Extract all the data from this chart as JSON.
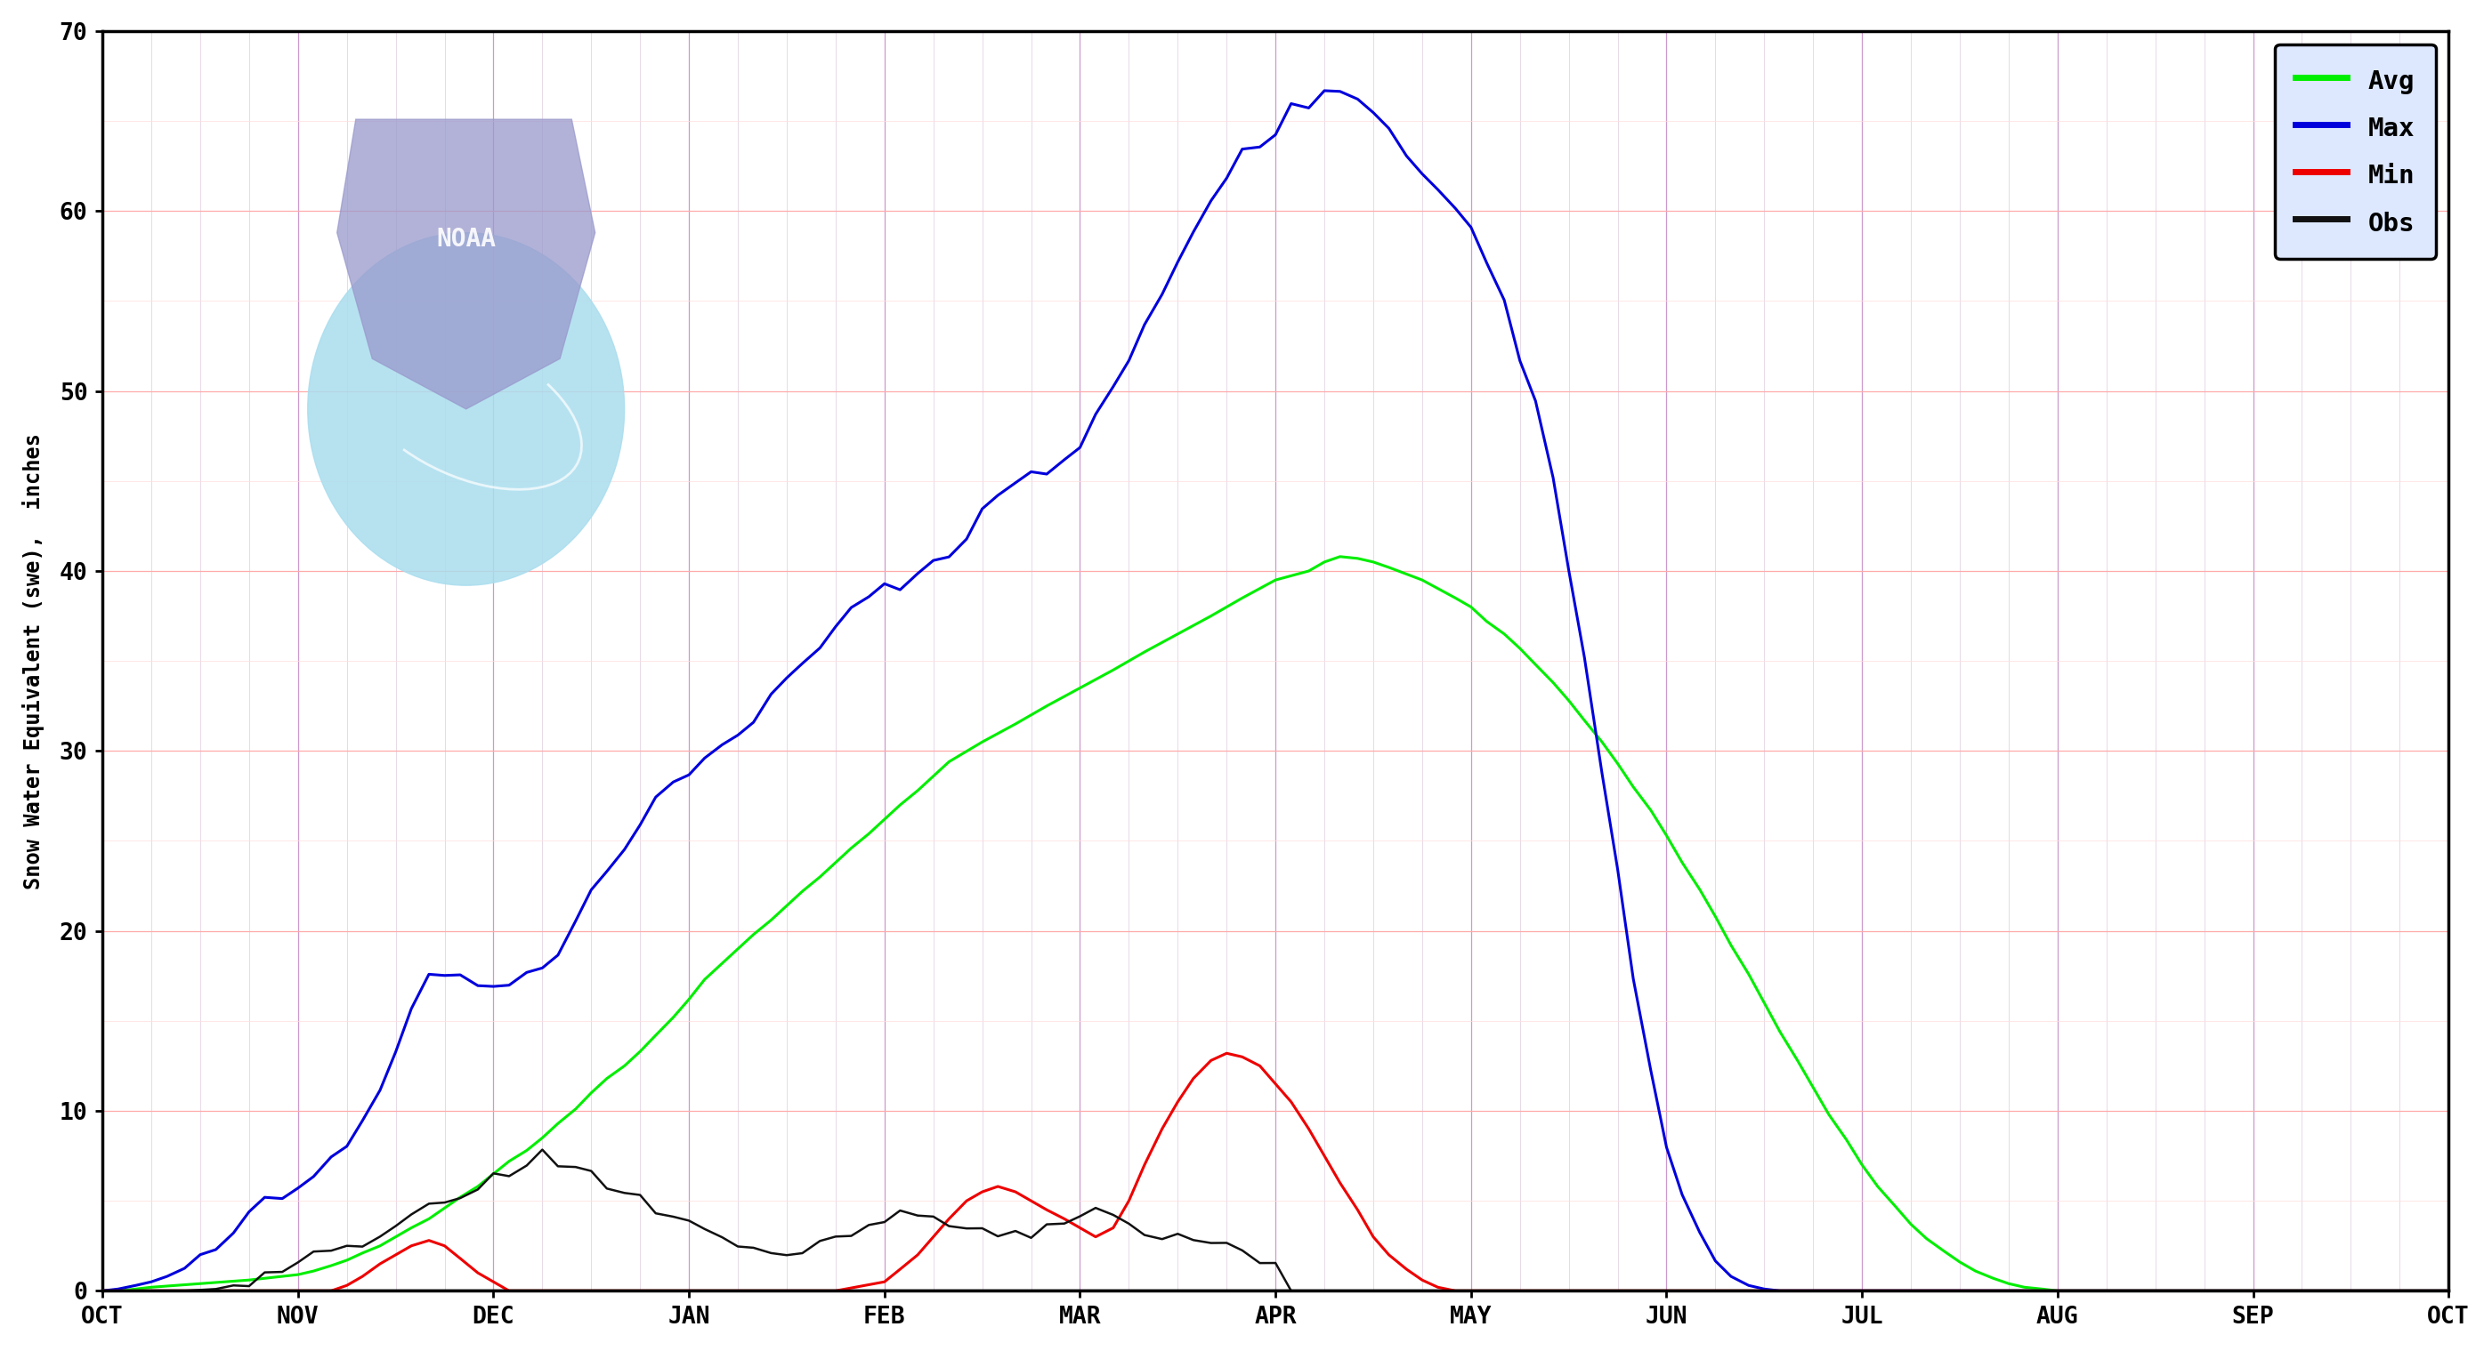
{
  "title": "",
  "ylabel": "Snow Water Equivalent (swe),  inches",
  "xlabel": "",
  "ylim": [
    0,
    70
  ],
  "yticks": [
    0,
    10,
    20,
    30,
    40,
    50,
    60,
    70
  ],
  "months": [
    "OCT",
    "NOV",
    "DEC",
    "JAN",
    "FEB",
    "MAR",
    "APR",
    "MAY",
    "JUN",
    "JUL",
    "AUG",
    "SEP",
    "OCT"
  ],
  "bg_color": "#ffffff",
  "plot_bg_color": "#ffffff",
  "major_hgrid_color": "#ffaaaa",
  "major_vgrid_color": "#cc99cc",
  "minor_hgrid_color": "#ffdddd",
  "minor_vgrid_color": "#ddccdd",
  "avg_color": "#00ee00",
  "max_color": "#0000dd",
  "min_color": "#ee0000",
  "obs_color": "#111111",
  "legend_bg": "#dde8ff",
  "noaa_shield_color": "#9999cc",
  "noaa_bird_color": "#aaddee",
  "avg_data": [
    [
      0.0,
      0.0
    ],
    [
      0.08,
      0.0
    ],
    [
      0.17,
      0.1
    ],
    [
      0.25,
      0.2
    ],
    [
      0.5,
      0.4
    ],
    [
      0.75,
      0.6
    ],
    [
      1.0,
      0.9
    ],
    [
      1.08,
      1.1
    ],
    [
      1.17,
      1.4
    ],
    [
      1.25,
      1.7
    ],
    [
      1.33,
      2.1
    ],
    [
      1.42,
      2.5
    ],
    [
      1.5,
      3.0
    ],
    [
      1.58,
      3.5
    ],
    [
      1.67,
      4.0
    ],
    [
      1.75,
      4.6
    ],
    [
      1.83,
      5.2
    ],
    [
      1.92,
      5.8
    ],
    [
      2.0,
      6.5
    ],
    [
      2.08,
      7.2
    ],
    [
      2.17,
      7.8
    ],
    [
      2.25,
      8.5
    ],
    [
      2.33,
      9.3
    ],
    [
      2.42,
      10.1
    ],
    [
      2.5,
      11.0
    ],
    [
      2.58,
      11.8
    ],
    [
      2.67,
      12.5
    ],
    [
      2.75,
      13.3
    ],
    [
      2.83,
      14.2
    ],
    [
      2.92,
      15.2
    ],
    [
      3.0,
      16.2
    ],
    [
      3.08,
      17.3
    ],
    [
      3.17,
      18.2
    ],
    [
      3.25,
      19.0
    ],
    [
      3.33,
      19.8
    ],
    [
      3.42,
      20.6
    ],
    [
      3.5,
      21.4
    ],
    [
      3.58,
      22.2
    ],
    [
      3.67,
      23.0
    ],
    [
      3.75,
      23.8
    ],
    [
      3.83,
      24.6
    ],
    [
      3.92,
      25.4
    ],
    [
      4.0,
      26.2
    ],
    [
      4.08,
      27.0
    ],
    [
      4.17,
      27.8
    ],
    [
      4.25,
      28.6
    ],
    [
      4.33,
      29.4
    ],
    [
      4.5,
      30.5
    ],
    [
      4.67,
      31.5
    ],
    [
      4.83,
      32.5
    ],
    [
      5.0,
      33.5
    ],
    [
      5.17,
      34.5
    ],
    [
      5.33,
      35.5
    ],
    [
      5.5,
      36.5
    ],
    [
      5.67,
      37.5
    ],
    [
      5.83,
      38.5
    ],
    [
      6.0,
      39.5
    ],
    [
      6.17,
      40.0
    ],
    [
      6.25,
      40.5
    ],
    [
      6.33,
      40.8
    ],
    [
      6.42,
      40.7
    ],
    [
      6.5,
      40.5
    ],
    [
      6.58,
      40.2
    ],
    [
      6.75,
      39.5
    ],
    [
      6.92,
      38.5
    ],
    [
      7.0,
      38.0
    ],
    [
      7.08,
      37.2
    ],
    [
      7.17,
      36.5
    ],
    [
      7.25,
      35.7
    ],
    [
      7.33,
      34.8
    ],
    [
      7.42,
      33.8
    ],
    [
      7.5,
      32.8
    ],
    [
      7.58,
      31.7
    ],
    [
      7.67,
      30.5
    ],
    [
      7.75,
      29.3
    ],
    [
      7.83,
      28.0
    ],
    [
      7.92,
      26.7
    ],
    [
      8.0,
      25.3
    ],
    [
      8.08,
      23.8
    ],
    [
      8.17,
      22.3
    ],
    [
      8.25,
      20.8
    ],
    [
      8.33,
      19.2
    ],
    [
      8.42,
      17.6
    ],
    [
      8.5,
      16.0
    ],
    [
      8.58,
      14.4
    ],
    [
      8.67,
      12.8
    ],
    [
      8.75,
      11.3
    ],
    [
      8.83,
      9.8
    ],
    [
      8.92,
      8.4
    ],
    [
      9.0,
      7.0
    ],
    [
      9.08,
      5.8
    ],
    [
      9.17,
      4.7
    ],
    [
      9.25,
      3.7
    ],
    [
      9.33,
      2.9
    ],
    [
      9.42,
      2.2
    ],
    [
      9.5,
      1.6
    ],
    [
      9.58,
      1.1
    ],
    [
      9.67,
      0.7
    ],
    [
      9.75,
      0.4
    ],
    [
      9.83,
      0.2
    ],
    [
      9.92,
      0.1
    ],
    [
      10.0,
      0.0
    ],
    [
      10.5,
      0.0
    ],
    [
      11.0,
      0.0
    ],
    [
      11.5,
      0.0
    ],
    [
      12.0,
      0.0
    ]
  ],
  "max_data": [
    [
      0.0,
      0.0
    ],
    [
      0.08,
      0.1
    ],
    [
      0.17,
      0.3
    ],
    [
      0.25,
      0.5
    ],
    [
      0.33,
      0.8
    ],
    [
      0.42,
      1.2
    ],
    [
      0.5,
      1.8
    ],
    [
      0.58,
      2.5
    ],
    [
      0.67,
      3.2
    ],
    [
      0.75,
      4.0
    ],
    [
      0.83,
      4.8
    ],
    [
      0.92,
      5.5
    ],
    [
      1.0,
      6.0
    ],
    [
      1.08,
      6.8
    ],
    [
      1.17,
      7.5
    ],
    [
      1.25,
      8.5
    ],
    [
      1.33,
      9.5
    ],
    [
      1.42,
      11.0
    ],
    [
      1.5,
      13.5
    ],
    [
      1.58,
      15.5
    ],
    [
      1.67,
      17.5
    ],
    [
      1.75,
      18.0
    ],
    [
      1.83,
      17.5
    ],
    [
      1.92,
      17.2
    ],
    [
      2.0,
      17.0
    ],
    [
      2.08,
      17.2
    ],
    [
      2.17,
      17.5
    ],
    [
      2.25,
      18.0
    ],
    [
      2.33,
      19.0
    ],
    [
      2.42,
      20.5
    ],
    [
      2.5,
      22.0
    ],
    [
      2.58,
      23.5
    ],
    [
      2.67,
      24.8
    ],
    [
      2.75,
      26.0
    ],
    [
      2.83,
      27.0
    ],
    [
      2.92,
      27.8
    ],
    [
      3.0,
      28.5
    ],
    [
      3.08,
      29.2
    ],
    [
      3.17,
      30.0
    ],
    [
      3.25,
      31.0
    ],
    [
      3.33,
      32.0
    ],
    [
      3.42,
      33.0
    ],
    [
      3.5,
      34.0
    ],
    [
      3.58,
      35.0
    ],
    [
      3.67,
      36.0
    ],
    [
      3.75,
      37.0
    ],
    [
      3.83,
      38.0
    ],
    [
      3.92,
      38.8
    ],
    [
      4.0,
      39.5
    ],
    [
      4.08,
      39.0
    ],
    [
      4.17,
      39.5
    ],
    [
      4.25,
      40.5
    ],
    [
      4.33,
      41.0
    ],
    [
      4.42,
      42.0
    ],
    [
      4.5,
      43.5
    ],
    [
      4.58,
      44.5
    ],
    [
      4.67,
      45.2
    ],
    [
      4.75,
      45.5
    ],
    [
      4.83,
      45.8
    ],
    [
      4.92,
      46.2
    ],
    [
      5.0,
      47.0
    ],
    [
      5.08,
      48.5
    ],
    [
      5.17,
      50.0
    ],
    [
      5.25,
      51.5
    ],
    [
      5.33,
      53.5
    ],
    [
      5.42,
      55.5
    ],
    [
      5.5,
      57.0
    ],
    [
      5.58,
      59.0
    ],
    [
      5.67,
      60.5
    ],
    [
      5.75,
      62.0
    ],
    [
      5.83,
      63.5
    ],
    [
      5.92,
      64.0
    ],
    [
      6.0,
      64.5
    ],
    [
      6.08,
      65.5
    ],
    [
      6.17,
      66.0
    ],
    [
      6.25,
      66.5
    ],
    [
      6.33,
      66.5
    ],
    [
      6.42,
      66.0
    ],
    [
      6.5,
      65.5
    ],
    [
      6.58,
      64.5
    ],
    [
      6.67,
      63.5
    ],
    [
      6.75,
      62.5
    ],
    [
      6.83,
      61.5
    ],
    [
      6.92,
      60.5
    ],
    [
      7.0,
      59.5
    ],
    [
      7.08,
      57.5
    ],
    [
      7.17,
      55.0
    ],
    [
      7.25,
      52.0
    ],
    [
      7.33,
      49.0
    ],
    [
      7.42,
      45.0
    ],
    [
      7.5,
      40.0
    ],
    [
      7.58,
      35.0
    ],
    [
      7.67,
      29.0
    ],
    [
      7.75,
      23.0
    ],
    [
      7.83,
      17.0
    ],
    [
      7.92,
      12.0
    ],
    [
      8.0,
      8.0
    ],
    [
      8.08,
      5.0
    ],
    [
      8.17,
      3.0
    ],
    [
      8.25,
      1.5
    ],
    [
      8.33,
      0.8
    ],
    [
      8.42,
      0.3
    ],
    [
      8.5,
      0.1
    ],
    [
      8.58,
      0.0
    ],
    [
      9.0,
      0.0
    ],
    [
      10.0,
      0.0
    ],
    [
      11.0,
      0.0
    ],
    [
      12.0,
      0.0
    ]
  ],
  "min_data": [
    [
      0.0,
      0.0
    ],
    [
      0.5,
      0.0
    ],
    [
      0.75,
      0.0
    ],
    [
      1.0,
      0.0
    ],
    [
      1.17,
      0.0
    ],
    [
      1.25,
      0.3
    ],
    [
      1.33,
      0.8
    ],
    [
      1.42,
      1.5
    ],
    [
      1.5,
      2.0
    ],
    [
      1.58,
      2.5
    ],
    [
      1.67,
      2.8
    ],
    [
      1.75,
      2.5
    ],
    [
      1.83,
      1.8
    ],
    [
      1.92,
      1.0
    ],
    [
      2.0,
      0.5
    ],
    [
      2.08,
      0.0
    ],
    [
      2.5,
      0.0
    ],
    [
      3.0,
      0.0
    ],
    [
      3.5,
      0.0
    ],
    [
      3.58,
      0.0
    ],
    [
      3.67,
      0.0
    ],
    [
      3.75,
      0.0
    ],
    [
      4.0,
      0.5
    ],
    [
      4.08,
      1.2
    ],
    [
      4.17,
      2.0
    ],
    [
      4.25,
      3.0
    ],
    [
      4.33,
      4.0
    ],
    [
      4.42,
      5.0
    ],
    [
      4.5,
      5.5
    ],
    [
      4.58,
      5.8
    ],
    [
      4.67,
      5.5
    ],
    [
      4.75,
      5.0
    ],
    [
      4.83,
      4.5
    ],
    [
      4.92,
      4.0
    ],
    [
      5.0,
      3.5
    ],
    [
      5.08,
      3.0
    ],
    [
      5.17,
      3.5
    ],
    [
      5.25,
      5.0
    ],
    [
      5.33,
      7.0
    ],
    [
      5.42,
      9.0
    ],
    [
      5.5,
      10.5
    ],
    [
      5.58,
      11.8
    ],
    [
      5.67,
      12.8
    ],
    [
      5.75,
      13.2
    ],
    [
      5.83,
      13.0
    ],
    [
      5.92,
      12.5
    ],
    [
      6.0,
      11.5
    ],
    [
      6.08,
      10.5
    ],
    [
      6.17,
      9.0
    ],
    [
      6.25,
      7.5
    ],
    [
      6.33,
      6.0
    ],
    [
      6.42,
      4.5
    ],
    [
      6.5,
      3.0
    ],
    [
      6.58,
      2.0
    ],
    [
      6.67,
      1.2
    ],
    [
      6.75,
      0.6
    ],
    [
      6.83,
      0.2
    ],
    [
      6.92,
      0.0
    ],
    [
      7.0,
      0.0
    ],
    [
      8.0,
      0.0
    ],
    [
      9.0,
      0.0
    ],
    [
      10.0,
      0.0
    ],
    [
      11.0,
      0.0
    ],
    [
      12.0,
      0.0
    ]
  ],
  "obs_data": [
    [
      0.0,
      0.0
    ],
    [
      0.08,
      0.0
    ],
    [
      0.17,
      0.0
    ],
    [
      0.25,
      0.0
    ],
    [
      0.42,
      0.0
    ],
    [
      0.58,
      0.1
    ],
    [
      0.67,
      0.3
    ],
    [
      0.75,
      0.6
    ],
    [
      0.83,
      0.8
    ],
    [
      0.92,
      1.1
    ],
    [
      1.0,
      1.4
    ],
    [
      1.08,
      1.8
    ],
    [
      1.17,
      2.2
    ],
    [
      1.25,
      2.5
    ],
    [
      1.33,
      2.8
    ],
    [
      1.42,
      3.2
    ],
    [
      1.5,
      3.6
    ],
    [
      1.58,
      4.1
    ],
    [
      1.67,
      4.6
    ],
    [
      1.75,
      5.0
    ],
    [
      1.83,
      5.5
    ],
    [
      1.92,
      5.8
    ],
    [
      2.0,
      6.2
    ],
    [
      2.08,
      6.6
    ],
    [
      2.17,
      7.0
    ],
    [
      2.25,
      7.5
    ],
    [
      2.33,
      7.3
    ],
    [
      2.42,
      6.8
    ],
    [
      2.5,
      6.3
    ],
    [
      2.58,
      5.9
    ],
    [
      2.67,
      5.4
    ],
    [
      2.75,
      5.0
    ],
    [
      2.83,
      4.6
    ],
    [
      2.92,
      4.1
    ],
    [
      3.0,
      3.7
    ],
    [
      3.08,
      3.3
    ],
    [
      3.17,
      3.0
    ],
    [
      3.25,
      2.7
    ],
    [
      3.33,
      2.4
    ],
    [
      3.42,
      2.2
    ],
    [
      3.5,
      2.0
    ],
    [
      3.58,
      2.2
    ],
    [
      3.67,
      2.5
    ],
    [
      3.75,
      2.8
    ],
    [
      3.83,
      3.2
    ],
    [
      3.92,
      3.6
    ],
    [
      4.0,
      4.0
    ],
    [
      4.08,
      4.5
    ],
    [
      4.17,
      4.3
    ],
    [
      4.25,
      4.0
    ],
    [
      4.33,
      3.7
    ],
    [
      4.42,
      3.5
    ],
    [
      4.5,
      3.3
    ],
    [
      4.58,
      3.1
    ],
    [
      4.67,
      3.0
    ],
    [
      4.75,
      3.2
    ],
    [
      4.83,
      3.5
    ],
    [
      4.92,
      3.8
    ],
    [
      5.0,
      4.2
    ],
    [
      5.08,
      4.5
    ],
    [
      5.17,
      4.2
    ],
    [
      5.25,
      3.8
    ],
    [
      5.33,
      3.5
    ],
    [
      5.42,
      3.2
    ],
    [
      5.5,
      3.0
    ],
    [
      5.58,
      2.8
    ],
    [
      5.67,
      2.5
    ],
    [
      5.75,
      2.3
    ],
    [
      5.83,
      2.1
    ],
    [
      5.92,
      1.9
    ],
    [
      6.0,
      1.7
    ],
    [
      6.08,
      0.0
    ]
  ]
}
